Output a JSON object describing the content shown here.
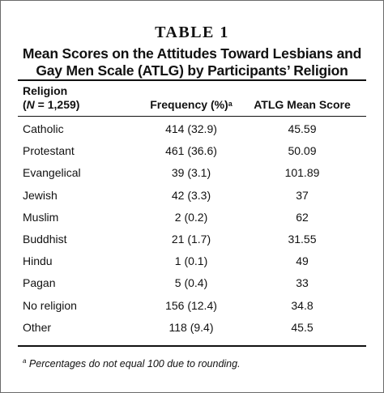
{
  "table": {
    "label": "TABLE 1",
    "caption_line1": "Mean Scores on the Attitudes Toward Lesbians and",
    "caption_line2": "Gay Men Scale (ATLG) by Participants’ Religion",
    "headers": {
      "religion": "Religion",
      "religion_n_prefix": "(",
      "religion_n_var": "N",
      "religion_n_suffix": " = 1,259)",
      "frequency": "Frequency (%)",
      "frequency_mark": "a",
      "atlg": "ATLG Mean Score"
    },
    "rows": [
      {
        "religion": "Catholic",
        "frequency": "414 (32.9)",
        "atlg": "45.59"
      },
      {
        "religion": "Protestant",
        "frequency": "461 (36.6)",
        "atlg": "50.09"
      },
      {
        "religion": "Evangelical",
        "frequency": "39 (3.1)",
        "atlg": "101.89"
      },
      {
        "religion": "Jewish",
        "frequency": "42 (3.3)",
        "atlg": "37"
      },
      {
        "religion": "Muslim",
        "frequency": "2 (0.2)",
        "atlg": "62"
      },
      {
        "religion": "Buddhist",
        "frequency": "21 (1.7)",
        "atlg": "31.55"
      },
      {
        "religion": "Hindu",
        "frequency": "1 (0.1)",
        "atlg": "49"
      },
      {
        "religion": "Pagan",
        "frequency": "5 (0.4)",
        "atlg": "33"
      },
      {
        "religion": "No religion",
        "frequency": "156 (12.4)",
        "atlg": "34.8"
      },
      {
        "religion": "Other",
        "frequency": "118 (9.4)",
        "atlg": "45.5"
      }
    ],
    "footnote_mark": "a",
    "footnote": " Percentages do not equal 100 due to rounding."
  }
}
